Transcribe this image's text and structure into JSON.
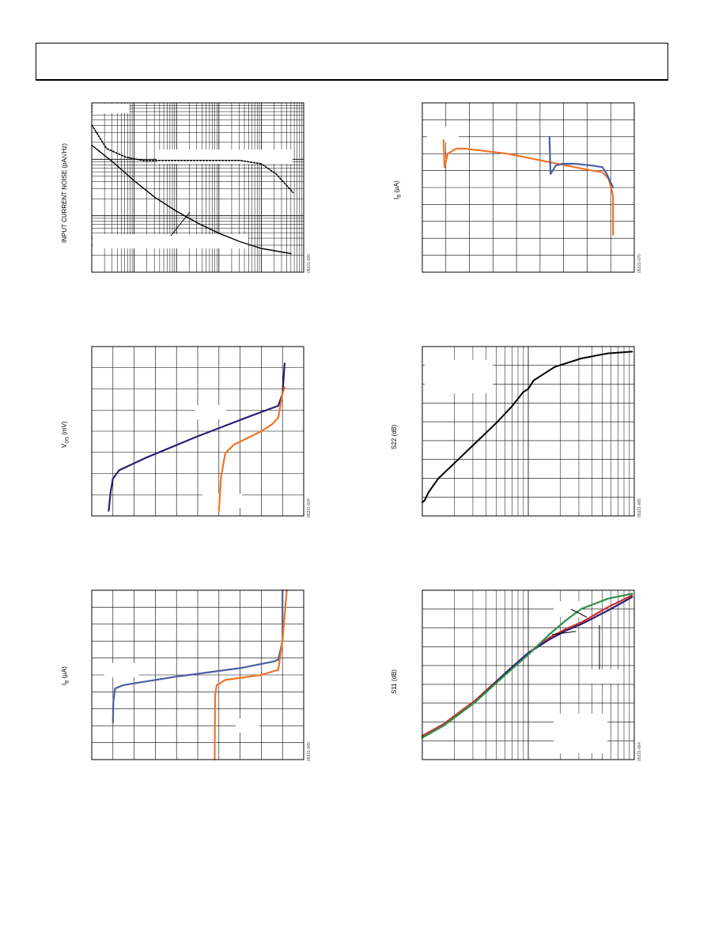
{
  "page": {
    "header_text": ""
  },
  "colors": {
    "ink": "#000000",
    "grid": "#000000",
    "orange": "#F07426",
    "blue": "#4A5FA4",
    "navy": "#2E1E78",
    "red": "#D0312D",
    "green": "#2E9148"
  },
  "panels": {
    "p1": {
      "ylabel": "INPUT CURRENT NOISE (pA/√Hz)",
      "fig_id": "05321-026"
    },
    "p2": {
      "ylabel_main": "I",
      "ylabel_sub": "B",
      "ylabel_tail": " (µA)",
      "fig_id": "05321-070"
    },
    "p3": {
      "ylabel_main": "V",
      "ylabel_sub": "OS",
      "ylabel_tail": " (mV)",
      "fig_id": "05321-024"
    },
    "p4": {
      "ylabel": "S22 (dB)",
      "fig_id": "05321-065"
    },
    "p5": {
      "ylabel_main": "I",
      "ylabel_sub": "B",
      "ylabel_tail": " (µA)",
      "fig_id": "05321-069"
    },
    "p6": {
      "ylabel": "S11 (dB)",
      "fig_id": "05321-064"
    }
  },
  "chart_data": [
    {
      "id": "p1",
      "type": "line",
      "title": "",
      "ylabel": "INPUT CURRENT NOISE (pA/√Hz)",
      "xlog": true,
      "ylog": true,
      "grid": true,
      "x_decades": 5,
      "y_decades": 3,
      "series": [
        {
          "style": "dashed",
          "points": [
            [
              0,
              0.13
            ],
            [
              0.35,
              0.27
            ],
            [
              0.8,
              0.32
            ],
            [
              1.2,
              0.34
            ],
            [
              3.5,
              0.34
            ],
            [
              4.0,
              0.36
            ],
            [
              4.35,
              0.42
            ],
            [
              4.75,
              0.53
            ]
          ]
        },
        {
          "style": "solid",
          "points": [
            [
              0,
              0.25
            ],
            [
              0.5,
              0.35
            ],
            [
              1.0,
              0.46
            ],
            [
              1.5,
              0.56
            ],
            [
              2.0,
              0.64
            ],
            [
              2.5,
              0.71
            ],
            [
              3.0,
              0.77
            ],
            [
              3.5,
              0.82
            ],
            [
              4.0,
              0.86
            ],
            [
              4.7,
              0.89
            ]
          ]
        }
      ]
    },
    {
      "id": "p2",
      "type": "line",
      "title": "",
      "ylabel": "IB (µA)",
      "grid": true,
      "x_divisions": 9,
      "y_divisions": 10,
      "series": [
        {
          "color_key": "orange",
          "points": [
            [
              0.1,
              0.22
            ],
            [
              0.105,
              0.38
            ],
            [
              0.12,
              0.3
            ],
            [
              0.16,
              0.27
            ],
            [
              0.2,
              0.27
            ],
            [
              0.4,
              0.3
            ],
            [
              0.6,
              0.35
            ],
            [
              0.8,
              0.4
            ],
            [
              0.85,
              0.41
            ],
            [
              0.88,
              0.45
            ],
            [
              0.9,
              0.55
            ],
            [
              0.9,
              0.78
            ]
          ]
        },
        {
          "color_key": "blue",
          "points": [
            [
              0.6,
              0.2
            ],
            [
              0.605,
              0.42
            ],
            [
              0.63,
              0.37
            ],
            [
              0.66,
              0.36
            ],
            [
              0.72,
              0.36
            ],
            [
              0.8,
              0.37
            ],
            [
              0.85,
              0.38
            ],
            [
              0.87,
              0.42
            ],
            [
              0.9,
              0.5
            ]
          ]
        }
      ]
    },
    {
      "id": "p3",
      "type": "line",
      "title": "",
      "ylabel": "VOS (mV)",
      "grid": true,
      "x_divisions": 10,
      "y_divisions": 8,
      "series": [
        {
          "color_key": "navy",
          "points": [
            [
              0.08,
              0.97
            ],
            [
              0.09,
              0.85
            ],
            [
              0.1,
              0.78
            ],
            [
              0.13,
              0.73
            ],
            [
              0.25,
              0.66
            ],
            [
              0.5,
              0.53
            ],
            [
              0.75,
              0.41
            ],
            [
              0.88,
              0.35
            ],
            [
              0.9,
              0.28
            ],
            [
              0.91,
              0.1
            ]
          ]
        },
        {
          "color_key": "orange",
          "points": [
            [
              0.6,
              0.97
            ],
            [
              0.605,
              0.88
            ],
            [
              0.61,
              0.77
            ],
            [
              0.63,
              0.63
            ],
            [
              0.67,
              0.58
            ],
            [
              0.8,
              0.5
            ],
            [
              0.85,
              0.46
            ],
            [
              0.88,
              0.42
            ],
            [
              0.9,
              0.28
            ],
            [
              0.91,
              0.24
            ]
          ]
        }
      ]
    },
    {
      "id": "p4",
      "type": "line",
      "title": "",
      "ylabel": "S22 (dB)",
      "xlog": true,
      "grid": true,
      "x_decades": 2,
      "y_divisions": 9,
      "series": [
        {
          "color_key": "ink",
          "points": [
            [
              0,
              0.92
            ],
            [
              0.02,
              0.91
            ],
            [
              0.06,
              0.86
            ],
            [
              0.15,
              0.78
            ],
            [
              0.3,
              0.69
            ],
            [
              0.5,
              0.57
            ],
            [
              0.7,
              0.45
            ],
            [
              0.85,
              0.35
            ],
            [
              0.95,
              0.27
            ],
            [
              1.0,
              0.25
            ],
            [
              1.05,
              0.2
            ],
            [
              1.25,
              0.12
            ],
            [
              1.5,
              0.07
            ],
            [
              1.75,
              0.04
            ],
            [
              1.98,
              0.03
            ]
          ]
        }
      ]
    },
    {
      "id": "p5",
      "type": "line",
      "title": "",
      "ylabel": "IB (µA)",
      "grid": true,
      "x_divisions": 10,
      "y_divisions": 10,
      "series": [
        {
          "color_key": "blue",
          "points": [
            [
              0.1,
              0.78
            ],
            [
              0.102,
              0.66
            ],
            [
              0.11,
              0.58
            ],
            [
              0.15,
              0.56
            ],
            [
              0.4,
              0.51
            ],
            [
              0.7,
              0.46
            ],
            [
              0.86,
              0.42
            ],
            [
              0.88,
              0.41
            ],
            [
              0.9,
              0.3
            ],
            [
              0.9,
              0.0
            ]
          ]
        },
        {
          "color_key": "orange",
          "points": [
            [
              0.58,
              1.0
            ],
            [
              0.582,
              0.62
            ],
            [
              0.59,
              0.56
            ],
            [
              0.63,
              0.53
            ],
            [
              0.8,
              0.5
            ],
            [
              0.88,
              0.47
            ],
            [
              0.9,
              0.3
            ],
            [
              0.92,
              0.0
            ]
          ]
        }
      ]
    },
    {
      "id": "p6",
      "type": "line",
      "title": "",
      "ylabel": "S11 (dB)",
      "xlog": true,
      "grid": true,
      "x_decades": 2,
      "y_divisions": 9,
      "series": [
        {
          "color_key": "red",
          "points": [
            [
              0,
              0.86
            ],
            [
              0.2,
              0.79
            ],
            [
              0.5,
              0.65
            ],
            [
              0.8,
              0.48
            ],
            [
              1.0,
              0.37
            ],
            [
              1.2,
              0.28
            ],
            [
              1.35,
              0.23
            ],
            [
              1.5,
              0.19
            ],
            [
              1.75,
              0.1
            ],
            [
              1.98,
              0.03
            ]
          ]
        },
        {
          "color_key": "navy",
          "points": [
            [
              0,
              0.87
            ],
            [
              0.2,
              0.8
            ],
            [
              0.5,
              0.66
            ],
            [
              0.8,
              0.48
            ],
            [
              1.0,
              0.37
            ],
            [
              1.2,
              0.29
            ],
            [
              1.35,
              0.24
            ],
            [
              1.5,
              0.2
            ],
            [
              1.75,
              0.12
            ],
            [
              1.98,
              0.04
            ]
          ]
        },
        {
          "color_key": "green",
          "points": [
            [
              0,
              0.87
            ],
            [
              0.2,
              0.8
            ],
            [
              0.5,
              0.66
            ],
            [
              0.8,
              0.49
            ],
            [
              1.0,
              0.38
            ],
            [
              1.2,
              0.26
            ],
            [
              1.35,
              0.18
            ],
            [
              1.5,
              0.11
            ],
            [
              1.75,
              0.05
            ],
            [
              1.98,
              0.02
            ]
          ]
        }
      ]
    }
  ]
}
